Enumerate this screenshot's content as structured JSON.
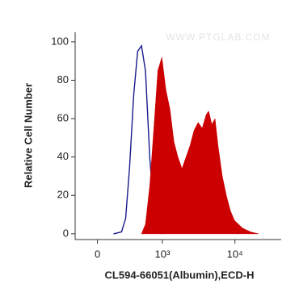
{
  "chart_data": {
    "type": "histogram-overlay",
    "watermark": "WWW.PTGLAB.COM",
    "x_label": "CL594-66051(Albumin),ECD-H",
    "y_label": "Relative Cell Number",
    "xscale": "asinh",
    "xscale_cofactor": 263,
    "xlim": [
      -200,
      43000
    ],
    "xticks": [
      {
        "value": 0,
        "label": "0"
      },
      {
        "value": 1000,
        "label": "10³"
      },
      {
        "value": 10000,
        "label": "10⁴"
      }
    ],
    "ylim": [
      -3,
      105
    ],
    "yticks": [
      0,
      20,
      40,
      60,
      80,
      100
    ],
    "x": [
      139,
      220,
      266,
      315,
      370,
      430,
      495,
      568,
      659,
      755,
      863,
      984,
      1122,
      1277,
      1453,
      1653,
      1880,
      2136,
      2427,
      2759,
      3134,
      3558,
      4040,
      4363,
      4829,
      5344,
      5915,
      6717,
      7627,
      8663,
      9836,
      12677,
      16332,
      21040
    ],
    "series": [
      {
        "color": "#1a1a8c",
        "fill": false,
        "values": [
          0,
          1,
          8,
          35,
          72,
          95,
          98,
          85,
          40,
          12,
          3,
          0,
          null,
          null,
          null,
          null,
          null,
          null,
          null,
          null,
          null,
          null,
          null,
          null,
          null,
          null,
          null,
          null,
          null,
          null,
          null,
          null,
          null,
          null
        ]
      },
      {
        "color": "#cc0000",
        "fill": true,
        "values": [
          null,
          null,
          null,
          null,
          null,
          null,
          0,
          5,
          25,
          55,
          85,
          92,
          75,
          65,
          48,
          40,
          34,
          40,
          46,
          54,
          58,
          55,
          62,
          64,
          57,
          60,
          45,
          30,
          20,
          12,
          7,
          3,
          1,
          0
        ]
      }
    ]
  }
}
